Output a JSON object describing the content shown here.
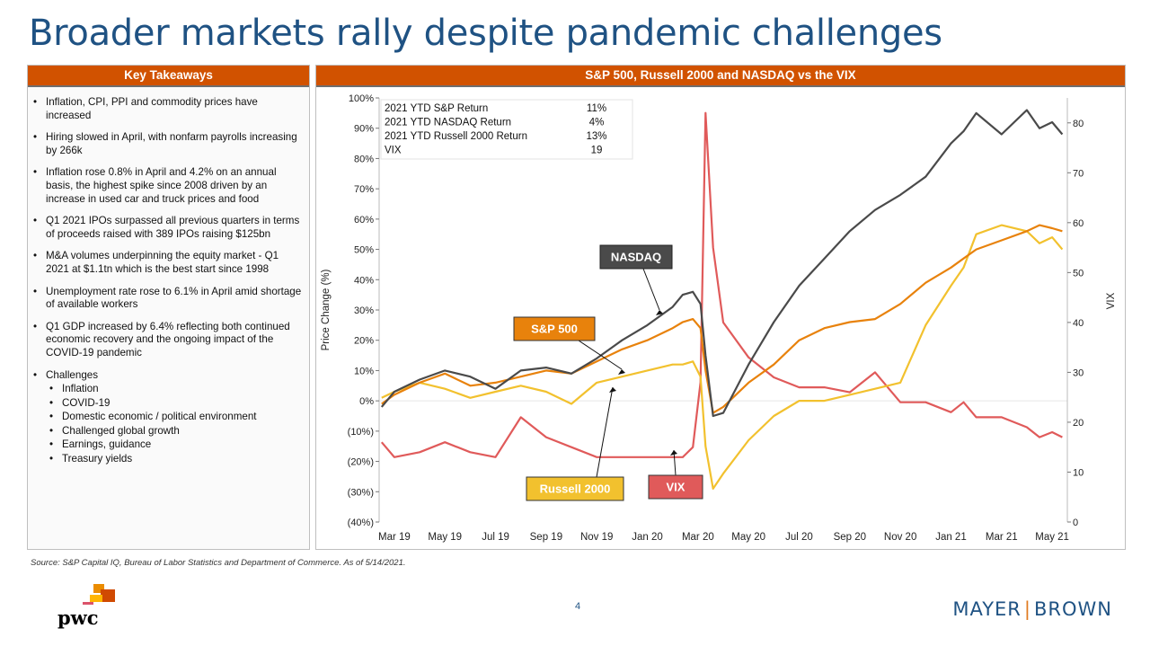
{
  "page": {
    "title": "Broader markets rally despite pandemic challenges",
    "source": "Source: S&P Capital IQ, Bureau of Labor Statistics and Department of Commerce. As of 5/14/2021.",
    "page_number": "4",
    "logo_left": "pwc",
    "logo_right": [
      "MAYER",
      "BROWN"
    ]
  },
  "takeaways": {
    "heading": "Key Takeaways",
    "items": [
      "Inflation, CPI, PPI and commodity prices have increased",
      "Hiring slowed in April, with nonfarm payrolls increasing by 266k",
      "Inflation rose 0.8% in April and 4.2% on an annual basis, the highest spike since 2008 driven by an increase in used car and truck prices and food",
      "Q1 2021 IPOs surpassed all previous quarters in terms of proceeds raised with 389 IPOs raising $125bn",
      "M&A volumes underpinning the equity market - Q1 2021 at $1.1tn which is the best start since 1998",
      "Unemployment rate rose to 6.1% in April amid shortage of available workers",
      "Q1 GDP increased by 6.4% reflecting both continued economic recovery and the ongoing impact of the COVID-19 pandemic",
      "Challenges"
    ],
    "challenges": [
      "Inflation",
      "COVID-19",
      "Domestic economic / political environment",
      "Challenged global growth",
      "Earnings, guidance",
      "Treasury yields"
    ]
  },
  "colors": {
    "nasdaq": "#4a4a4a",
    "sp500": "#e8820c",
    "russell": "#f2c12e",
    "vix": "#e05a5a",
    "header": "#d15200",
    "title": "#1f5283"
  },
  "chart_data": {
    "type": "line",
    "title": "S&P 500, Russell 2000 and NASDAQ vs the VIX",
    "ylabel": "Price Change (%)",
    "y2label": "VIX",
    "ylim": [
      -40,
      100
    ],
    "y2lim": [
      0,
      85
    ],
    "yticks": [
      "100%",
      "90%",
      "80%",
      "70%",
      "60%",
      "50%",
      "40%",
      "30%",
      "20%",
      "10%",
      "0%",
      "(10%)",
      "(20%)",
      "(30%)",
      "(40%)"
    ],
    "ytick_values": [
      100,
      90,
      80,
      70,
      60,
      50,
      40,
      30,
      20,
      10,
      0,
      -10,
      -20,
      -30,
      -40
    ],
    "y2ticks": [
      "80",
      "70",
      "60",
      "50",
      "40",
      "30",
      "20",
      "10",
      "0"
    ],
    "y2tick_values": [
      80,
      70,
      60,
      50,
      40,
      30,
      20,
      10,
      0
    ],
    "xticks": [
      "Mar 19",
      "May 19",
      "Jul 19",
      "Sep 19",
      "Nov 19",
      "Jan 20",
      "Mar 20",
      "May 20",
      "Jul 20",
      "Sep 20",
      "Nov 20",
      "Jan 21",
      "Mar 21",
      "May 21"
    ],
    "xtick_values": [
      2,
      4,
      6,
      8,
      10,
      12,
      14,
      16,
      18,
      20,
      22,
      24,
      26,
      28
    ],
    "xlim": [
      1.4,
      28.6
    ],
    "x": [
      1.5,
      2,
      3,
      4,
      5,
      6,
      7,
      8,
      9,
      10,
      11,
      12,
      13,
      13.4,
      13.8,
      14.1,
      14.3,
      14.6,
      15,
      16,
      17,
      18,
      19,
      20,
      21,
      22,
      23,
      24,
      24.5,
      25,
      26,
      27,
      27.5,
      28,
      28.4
    ],
    "series": [
      {
        "name": "NASDAQ",
        "axis": "left",
        "values": [
          -2,
          3,
          7,
          10,
          8,
          4,
          10,
          11,
          9,
          14,
          20,
          25,
          31,
          35,
          36,
          32,
          15,
          -5,
          -4,
          12,
          26,
          38,
          47,
          56,
          63,
          68,
          74,
          85,
          89,
          95,
          88,
          96,
          90,
          92,
          88
        ]
      },
      {
        "name": "S&P 500",
        "axis": "left",
        "values": [
          -1,
          2,
          6,
          9,
          5,
          6,
          8,
          10,
          9,
          13,
          17,
          20,
          24,
          26,
          27,
          24,
          10,
          -4,
          -2,
          6,
          12,
          20,
          24,
          26,
          27,
          32,
          39,
          44,
          47,
          50,
          53,
          56,
          58,
          57,
          56
        ]
      },
      {
        "name": "Russell 2000",
        "axis": "left",
        "values": [
          1,
          3,
          6,
          4,
          1,
          3,
          5,
          3,
          -1,
          6,
          8,
          10,
          12,
          12,
          13,
          8,
          -15,
          -29,
          -24,
          -13,
          -5,
          0,
          0,
          2,
          4,
          6,
          25,
          38,
          44,
          55,
          58,
          56,
          52,
          54,
          50
        ]
      },
      {
        "name": "VIX",
        "axis": "right",
        "values": [
          16,
          13,
          14,
          16,
          14,
          13,
          21,
          17,
          15,
          13,
          13,
          13,
          13,
          13,
          15,
          28,
          82,
          55,
          40,
          33,
          29,
          27,
          27,
          26,
          30,
          24,
          24,
          22,
          24,
          21,
          21,
          19,
          17,
          18,
          17
        ]
      }
    ],
    "labels": [
      "NASDAQ",
      "S&P 500",
      "Russell 2000",
      "VIX"
    ],
    "table": [
      {
        "label": "2021 YTD S&P Return",
        "value": "11%"
      },
      {
        "label": "2021 YTD NASDAQ Return",
        "value": "4%"
      },
      {
        "label": "2021 YTD Russell 2000 Return",
        "value": "13%"
      },
      {
        "label": "VIX",
        "value": "19"
      }
    ]
  }
}
